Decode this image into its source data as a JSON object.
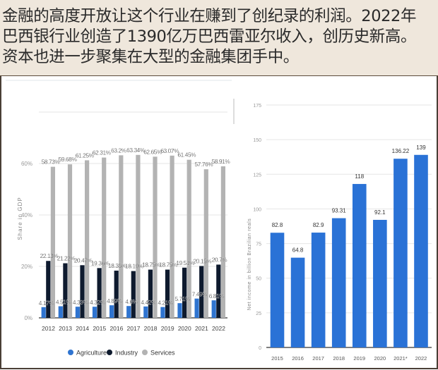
{
  "header": {
    "lines": [
      "金融的高度开放让这个行业在赚到了创纪录的利润。2022年",
      "巴西银行业创造了1390亿万巴西雷亚尔收入，创历史新高。",
      "资本也进一步聚集在大型的金融集团手中。"
    ]
  },
  "chart_data": [
    {
      "type": "bar",
      "categories": [
        "2012",
        "2013",
        "2014",
        "2015",
        "2016",
        "2017",
        "2018",
        "2019",
        "2020",
        "2021",
        "2022"
      ],
      "ylabel": "Share in GDP",
      "ylim": [
        0,
        80
      ],
      "yticks": [
        "0%",
        "20%",
        "40%",
        "60%"
      ],
      "grid": true,
      "legend": "bottom",
      "series": [
        {
          "name": "Agriculture",
          "color": "#2f74d0",
          "values": [
            4.17,
            4.51,
            4.33,
            4.32,
            4.89,
            4.6,
            4.42,
            4.21,
            5.71,
            7.49,
            6.81
          ],
          "labels": [
            "4.17%",
            "4.51%",
            "4.33%",
            "4.32%",
            "4.89%",
            "4.6%",
            "4.42%",
            "4.21%",
            "5.71%",
            "7.49%",
            "6.81%"
          ]
        },
        {
          "name": "Industry",
          "color": "#0e1a2e",
          "values": [
            22.13,
            21.22,
            20.47,
            19.36,
            18.35,
            18.19,
            18.75,
            18.75,
            19.51,
            20.15,
            20.7
          ],
          "labels": [
            "22.13%",
            "21.22%",
            "20.47%",
            "19.36%",
            "18.35%",
            "18.19%",
            "18.75%",
            "18.75%",
            "19.51%",
            "20.15%",
            "20.7%"
          ]
        },
        {
          "name": "Services",
          "color": "#b3b3b3",
          "values": [
            58.73,
            59.68,
            61.25,
            62.31,
            63.2,
            63.34,
            62.65,
            63.07,
            61.45,
            57.76,
            58.91
          ],
          "labels": [
            "58.73%",
            "59.68%",
            "61.25%",
            "62.31%",
            "63.2%",
            "63.34%",
            "62.65%",
            "63.07%",
            "61.45%",
            "57.76%",
            "58.91%"
          ]
        }
      ]
    },
    {
      "type": "bar",
      "categories": [
        "2015",
        "2016",
        "2017",
        "2018",
        "2019",
        "2020",
        "2021*",
        "2022"
      ],
      "values": [
        82.8,
        64.8,
        82.9,
        93.31,
        118,
        92.1,
        136.22,
        139
      ],
      "labels": [
        "82.8",
        "64.8",
        "82.9",
        "93.31",
        "118",
        "92.1",
        "136.22",
        "139"
      ],
      "ylabel": "Net income in billion Brazilian reals",
      "ylim": [
        0,
        175
      ],
      "yticks": [
        "0",
        "25",
        "50",
        "75",
        "100",
        "125",
        "150",
        "175"
      ],
      "grid": true,
      "color": "#2a72d6"
    }
  ]
}
